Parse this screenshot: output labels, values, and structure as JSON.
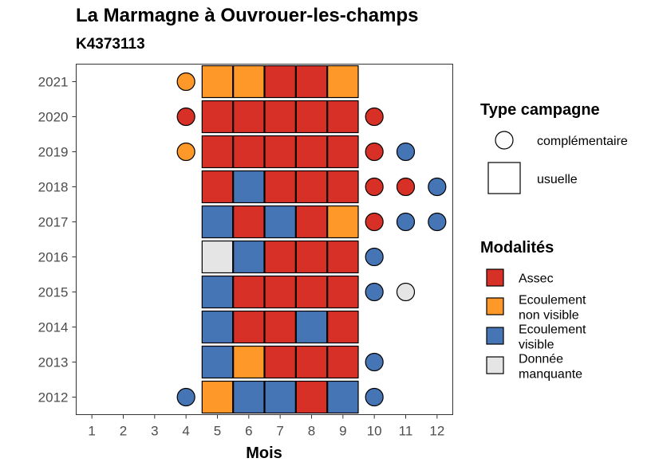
{
  "chart_data": {
    "type": "heatmap",
    "title": "La Marmagne à Ouvrouer-les-champs",
    "subtitle": "K4373113",
    "xlabel": "Mois",
    "ylabel": "",
    "x_ticks": [
      "1",
      "2",
      "3",
      "4",
      "5",
      "6",
      "7",
      "8",
      "9",
      "10",
      "11",
      "12"
    ],
    "y_ticks": [
      "2012",
      "2013",
      "2014",
      "2015",
      "2016",
      "2017",
      "2018",
      "2019",
      "2020",
      "2021"
    ],
    "xlim": [
      0.5,
      12.5
    ],
    "ylim": [
      2011.5,
      2021.5
    ],
    "grid": false,
    "colors": {
      "Assec": "#d73027",
      "Ecoulement non visible": "#fe9929",
      "Ecoulement visible": "#4575b4",
      "Donnée manquante": "#e5e5e5"
    },
    "usuelle": [
      {
        "year": 2021,
        "months": [
          5,
          6,
          7,
          8,
          9
        ],
        "values": [
          "Ecoulement non visible",
          "Ecoulement non visible",
          "Assec",
          "Assec",
          "Ecoulement non visible"
        ]
      },
      {
        "year": 2020,
        "months": [
          5,
          6,
          7,
          8,
          9
        ],
        "values": [
          "Assec",
          "Assec",
          "Assec",
          "Assec",
          "Assec"
        ]
      },
      {
        "year": 2019,
        "months": [
          5,
          6,
          7,
          8,
          9
        ],
        "values": [
          "Assec",
          "Assec",
          "Assec",
          "Assec",
          "Assec"
        ]
      },
      {
        "year": 2018,
        "months": [
          5,
          6,
          7,
          8,
          9
        ],
        "values": [
          "Assec",
          "Ecoulement visible",
          "Assec",
          "Assec",
          "Assec"
        ]
      },
      {
        "year": 2017,
        "months": [
          5,
          6,
          7,
          8,
          9
        ],
        "values": [
          "Ecoulement visible",
          "Assec",
          "Ecoulement visible",
          "Assec",
          "Ecoulement non visible"
        ]
      },
      {
        "year": 2016,
        "months": [
          5,
          6,
          7,
          8,
          9
        ],
        "values": [
          "Donnée manquante",
          "Ecoulement visible",
          "Assec",
          "Assec",
          "Assec"
        ]
      },
      {
        "year": 2015,
        "months": [
          5,
          6,
          7,
          8,
          9
        ],
        "values": [
          "Ecoulement visible",
          "Assec",
          "Assec",
          "Assec",
          "Assec"
        ]
      },
      {
        "year": 2014,
        "months": [
          5,
          6,
          7,
          8,
          9
        ],
        "values": [
          "Ecoulement visible",
          "Assec",
          "Assec",
          "Ecoulement visible",
          "Assec"
        ]
      },
      {
        "year": 2013,
        "months": [
          5,
          6,
          7,
          8,
          9
        ],
        "values": [
          "Ecoulement visible",
          "Ecoulement non visible",
          "Assec",
          "Assec",
          "Assec"
        ]
      },
      {
        "year": 2012,
        "months": [
          5,
          6,
          7,
          8,
          9
        ],
        "values": [
          "Ecoulement non visible",
          "Ecoulement visible",
          "Ecoulement visible",
          "Assec",
          "Ecoulement visible"
        ]
      }
    ],
    "complementaire": [
      {
        "year": 2021,
        "month": 4,
        "value": "Ecoulement non visible"
      },
      {
        "year": 2020,
        "month": 4,
        "value": "Assec"
      },
      {
        "year": 2020,
        "month": 10,
        "value": "Assec"
      },
      {
        "year": 2019,
        "month": 4,
        "value": "Ecoulement non visible"
      },
      {
        "year": 2019,
        "month": 10,
        "value": "Assec"
      },
      {
        "year": 2019,
        "month": 11,
        "value": "Ecoulement visible"
      },
      {
        "year": 2018,
        "month": 10,
        "value": "Assec"
      },
      {
        "year": 2018,
        "month": 11,
        "value": "Assec"
      },
      {
        "year": 2018,
        "month": 12,
        "value": "Ecoulement visible"
      },
      {
        "year": 2017,
        "month": 10,
        "value": "Assec"
      },
      {
        "year": 2017,
        "month": 11,
        "value": "Ecoulement visible"
      },
      {
        "year": 2017,
        "month": 12,
        "value": "Ecoulement visible"
      },
      {
        "year": 2016,
        "month": 10,
        "value": "Ecoulement visible"
      },
      {
        "year": 2015,
        "month": 10,
        "value": "Ecoulement visible"
      },
      {
        "year": 2015,
        "month": 11,
        "value": "Donnée manquante"
      },
      {
        "year": 2013,
        "month": 10,
        "value": "Ecoulement visible"
      },
      {
        "year": 2012,
        "month": 4,
        "value": "Ecoulement visible"
      },
      {
        "year": 2012,
        "month": 10,
        "value": "Ecoulement visible"
      }
    ],
    "legend_type": {
      "title": "Type campagne",
      "items": [
        "complémentaire",
        "usuelle"
      ]
    },
    "legend_modalites": {
      "title": "Modalités",
      "items": [
        {
          "key": "Assec",
          "lines": [
            "Assec"
          ]
        },
        {
          "key": "Ecoulement non visible",
          "lines": [
            "Ecoulement",
            "non visible"
          ]
        },
        {
          "key": "Ecoulement visible",
          "lines": [
            "Ecoulement",
            "visible"
          ]
        },
        {
          "key": "Donnée manquante",
          "lines": [
            "Donnée",
            "manquante"
          ]
        }
      ]
    },
    "legend_position": "right"
  }
}
